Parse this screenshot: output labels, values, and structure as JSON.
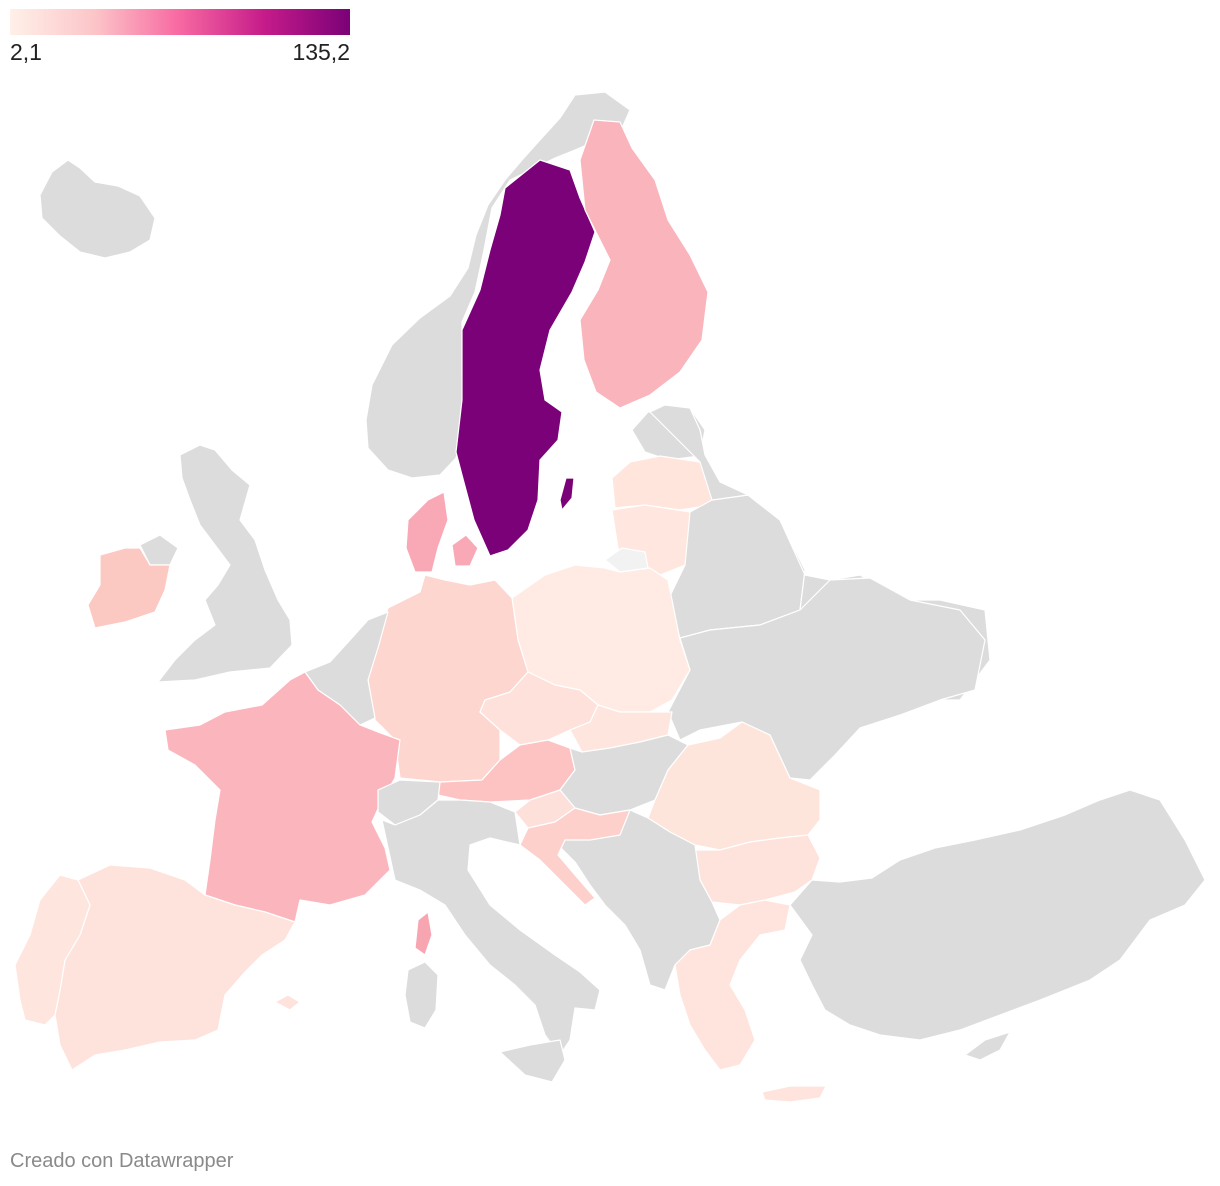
{
  "legend": {
    "min_label": "2,1",
    "max_label": "135,2",
    "gradient": [
      "#fff0e8",
      "#fcc5c8",
      "#f768a1",
      "#c51b8a",
      "#7a0177"
    ]
  },
  "credit": "Creado con Datawrapper",
  "colors": {
    "no_data": "#dcdcdc",
    "no_data_light": "#f2f2f2"
  },
  "countries": [
    {
      "name": "Sweden",
      "color": "#7a0177"
    },
    {
      "name": "Finland",
      "color": "#fab4bb"
    },
    {
      "name": "Denmark",
      "color": "#f9a9b6"
    },
    {
      "name": "Ireland",
      "color": "#fcc8c2"
    },
    {
      "name": "France",
      "color": "#fbb6bd"
    },
    {
      "name": "Corsica",
      "color": "#f8a5b2"
    },
    {
      "name": "Germany",
      "color": "#fdd6d0"
    },
    {
      "name": "Austria",
      "color": "#fcc3c2"
    },
    {
      "name": "Czechia",
      "color": "#fee1db"
    },
    {
      "name": "Slovakia",
      "color": "#fee6df"
    },
    {
      "name": "Poland",
      "color": "#ffebe3"
    },
    {
      "name": "Lithuania",
      "color": "#ffe6de"
    },
    {
      "name": "Latvia",
      "color": "#ffe5dc"
    },
    {
      "name": "Estonia",
      "color": "#dcdcdc"
    },
    {
      "name": "Spain",
      "color": "#fee3dc"
    },
    {
      "name": "Portugal",
      "color": "#fee5de"
    },
    {
      "name": "Slovenia",
      "color": "#fee0da"
    },
    {
      "name": "Croatia",
      "color": "#fdd0cc"
    },
    {
      "name": "Romania",
      "color": "#fee5dc"
    },
    {
      "name": "Bulgaria",
      "color": "#fee3dc"
    },
    {
      "name": "Greece",
      "color": "#fee4dc"
    },
    {
      "name": "Crete",
      "color": "#fee4dc"
    },
    {
      "name": "Norway",
      "color": "#dcdcdc"
    },
    {
      "name": "United Kingdom",
      "color": "#dcdcdc"
    },
    {
      "name": "Iceland",
      "color": "#dcdcdc"
    },
    {
      "name": "Italy",
      "color": "#dcdcdc"
    },
    {
      "name": "Switzerland",
      "color": "#dcdcdc"
    },
    {
      "name": "Benelux",
      "color": "#dcdcdc"
    },
    {
      "name": "Hungary",
      "color": "#dcdcdc"
    },
    {
      "name": "Belarus",
      "color": "#dcdcdc"
    },
    {
      "name": "Ukraine",
      "color": "#dcdcdc"
    },
    {
      "name": "Balkans",
      "color": "#dcdcdc"
    },
    {
      "name": "Turkey",
      "color": "#dcdcdc"
    },
    {
      "name": "Kaliningrad",
      "color": "#f2f2f2"
    }
  ]
}
